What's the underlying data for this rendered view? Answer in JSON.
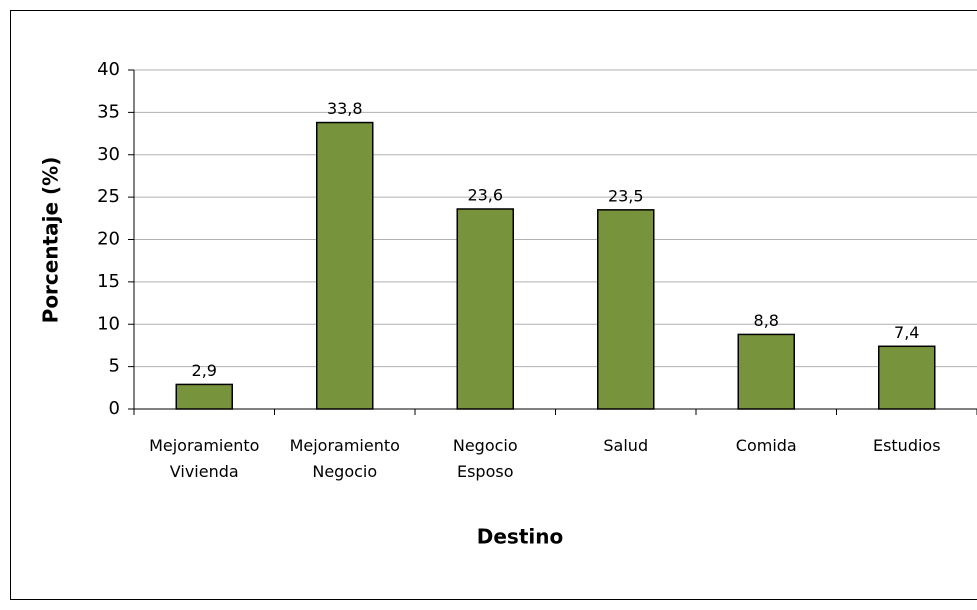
{
  "chart_data": {
    "type": "bar",
    "categories": [
      [
        "Mejoramiento",
        "Vivienda"
      ],
      [
        "Mejoramiento",
        "Negocio"
      ],
      [
        "Negocio",
        "Esposo"
      ],
      [
        "Salud"
      ],
      [
        "Comida"
      ],
      [
        "Estudios"
      ]
    ],
    "values": [
      2.9,
      33.8,
      23.6,
      23.5,
      8.8,
      7.4
    ],
    "value_labels": [
      "2,9",
      "33,8",
      "23,6",
      "23,5",
      "8,8",
      "7,4"
    ],
    "color": "#77933c",
    "ylim": [
      0,
      40
    ],
    "yticks": [
      0,
      5,
      10,
      15,
      20,
      25,
      30,
      35,
      40
    ],
    "grid": true,
    "xlabel": "Destino",
    "ylabel": "Porcentaje (%)"
  }
}
